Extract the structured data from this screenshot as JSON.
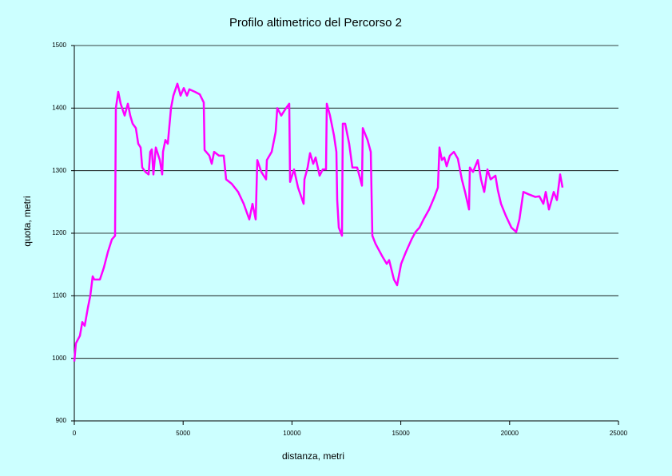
{
  "chart_data": {
    "type": "line",
    "title": "Profilo altimetrico del Percorso 2",
    "x_label": "distanza, metri",
    "y_label": "quota, metri",
    "x": [
      0,
      73,
      257,
      367,
      477,
      624,
      734,
      844,
      918,
      1175,
      1358,
      1542,
      1725,
      1872,
      1909,
      2019,
      2129,
      2313,
      2460,
      2570,
      2680,
      2827,
      2937,
      3047,
      3120,
      3267,
      3414,
      3488,
      3561,
      3634,
      3744,
      3928,
      4038,
      4075,
      4185,
      4295,
      4442,
      4552,
      4736,
      4883,
      5029,
      5176,
      5286,
      5543,
      5763,
      5947,
      5984,
      6204,
      6314,
      6424,
      6645,
      6865,
      6975,
      7232,
      7526,
      7783,
      8040,
      8186,
      8333,
      8407,
      8590,
      8811,
      8847,
      9068,
      9251,
      9325,
      9508,
      9728,
      9875,
      9912,
      10095,
      10279,
      10536,
      10573,
      10719,
      10830,
      10976,
      11086,
      11270,
      11417,
      11564,
      11600,
      11747,
      11931,
      12041,
      12078,
      12151,
      12298,
      12335,
      12445,
      12628,
      12775,
      12996,
      13143,
      13216,
      13253,
      13473,
      13620,
      13693,
      13840,
      14134,
      14354,
      14464,
      14685,
      14831,
      15015,
      15235,
      15492,
      15676,
      15859,
      16043,
      16300,
      16520,
      16704,
      16777,
      16887,
      16997,
      17107,
      17254,
      17438,
      17621,
      17805,
      17952,
      18135,
      18172,
      18319,
      18539,
      18686,
      18833,
      18980,
      19127,
      19347,
      19457,
      19604,
      19824,
      20081,
      20301,
      20448,
      20631,
      20888,
      21182,
      21366,
      21549,
      21659,
      21806,
      22026,
      22173,
      22320,
      22430
    ],
    "series": [
      {
        "color": "#ff00ff",
        "values": [
          995,
          1024,
          1036,
          1058,
          1052,
          1081,
          1100,
          1131,
          1126,
          1126,
          1145,
          1170,
          1190,
          1196,
          1400,
          1426,
          1407,
          1388,
          1407,
          1388,
          1375,
          1368,
          1343,
          1337,
          1305,
          1298,
          1294,
          1330,
          1334,
          1294,
          1337,
          1317,
          1294,
          1330,
          1349,
          1343,
          1400,
          1420,
          1439,
          1420,
          1432,
          1420,
          1430,
          1426,
          1422,
          1409,
          1333,
          1324,
          1311,
          1330,
          1324,
          1324,
          1286,
          1279,
          1266,
          1247,
          1222,
          1247,
          1222,
          1317,
          1298,
          1286,
          1317,
          1330,
          1362,
          1400,
          1388,
          1400,
          1407,
          1282,
          1302,
          1273,
          1247,
          1286,
          1305,
          1328,
          1311,
          1321,
          1292,
          1302,
          1302,
          1407,
          1388,
          1356,
          1330,
          1253,
          1209,
          1196,
          1375,
          1375,
          1343,
          1305,
          1305,
          1286,
          1276,
          1368,
          1349,
          1330,
          1196,
          1183,
          1164,
          1151,
          1157,
          1126,
          1117,
          1151,
          1170,
          1190,
          1202,
          1209,
          1222,
          1238,
          1256,
          1273,
          1337,
          1317,
          1321,
          1307,
          1324,
          1330,
          1319,
          1286,
          1266,
          1238,
          1305,
          1298,
          1317,
          1286,
          1266,
          1302,
          1286,
          1292,
          1269,
          1247,
          1228,
          1209,
          1202,
          1222,
          1266,
          1262,
          1258,
          1259,
          1247,
          1266,
          1238,
          1266,
          1253,
          1294,
          1273
        ]
      }
    ],
    "xlim": [
      0,
      25000
    ],
    "ylim": [
      900,
      1500
    ],
    "xticks": [
      0,
      5000,
      10000,
      15000,
      20000,
      25000
    ],
    "yticks": [
      900,
      1000,
      1100,
      1200,
      1300,
      1400,
      1500
    ],
    "grid": true
  }
}
